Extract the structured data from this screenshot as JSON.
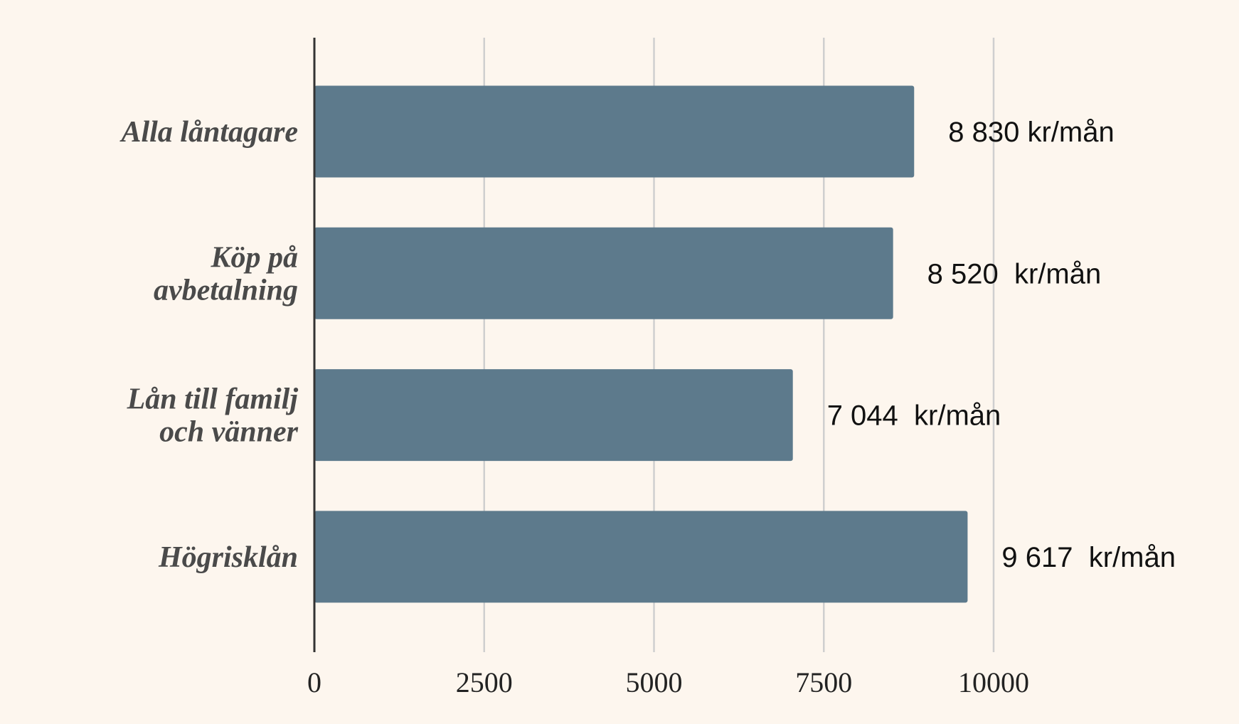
{
  "chart_data": {
    "type": "bar",
    "orientation": "horizontal",
    "categories": [
      "Alla låntagare",
      "Köp på\navbetalning",
      "Lån till familj\noch vänner",
      "Högrisklån"
    ],
    "values": [
      8830,
      8520,
      7044,
      9617
    ],
    "value_labels": [
      "8 830 kr/mån",
      "8 520  kr/mån",
      "7 044  kr/mån",
      "9 617  kr/mån"
    ],
    "color": "#5d7a8c",
    "xlim": [
      0,
      10000
    ],
    "xticks": [
      0,
      2500,
      5000,
      7500,
      10000
    ],
    "grid": true
  }
}
